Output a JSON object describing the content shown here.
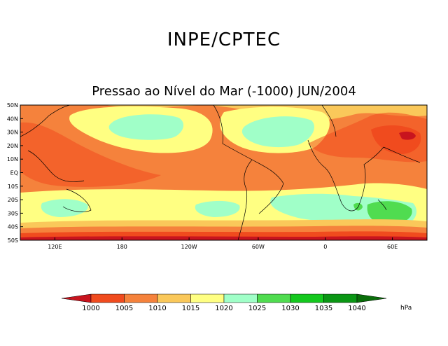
{
  "header": {
    "title": "INPE/CPTEC",
    "subtitle": "Pressao ao Nível do Mar (-1000) JUN/2004"
  },
  "map": {
    "lat_labels": [
      "50N",
      "40N",
      "30N",
      "20N",
      "10N",
      "EQ",
      "10S",
      "20S",
      "30S",
      "40S",
      "50S"
    ],
    "lon_labels": [
      "120E",
      "180",
      "120W",
      "60W",
      "0",
      "60E"
    ]
  },
  "colorbar": {
    "levels": [
      "1000",
      "1005",
      "1010",
      "1015",
      "1020",
      "1025",
      "1030",
      "1035",
      "1040"
    ],
    "unit": "hPa",
    "colors": [
      "#c8141e",
      "#f04b1e",
      "#f5823c",
      "#fac85a",
      "#ffff82",
      "#a0ffc8",
      "#50dc50",
      "#14c81e",
      "#0a9614",
      "#0a6e0a"
    ]
  }
}
